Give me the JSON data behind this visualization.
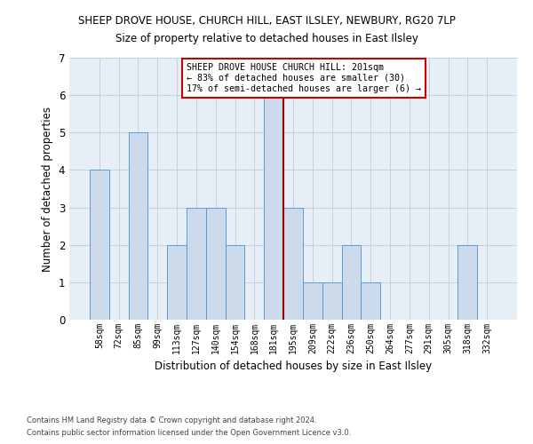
{
  "title1": "SHEEP DROVE HOUSE, CHURCH HILL, EAST ILSLEY, NEWBURY, RG20 7LP",
  "title2": "Size of property relative to detached houses in East Ilsley",
  "xlabel": "Distribution of detached houses by size in East Ilsley",
  "ylabel": "Number of detached properties",
  "footer1": "Contains HM Land Registry data © Crown copyright and database right 2024.",
  "footer2": "Contains public sector information licensed under the Open Government Licence v3.0.",
  "annotation_line1": "SHEEP DROVE HOUSE CHURCH HILL: 201sqm",
  "annotation_line2": "← 83% of detached houses are smaller (30)",
  "annotation_line3": "17% of semi-detached houses are larger (6) →",
  "bar_color": "#ccdaeb",
  "bar_edge_color": "#5b9bd5",
  "redline_color": "#990000",
  "annotation_box_facecolor": "#ffffff",
  "annotation_box_edgecolor": "#cc0000",
  "plot_bg_color": "#e8eef6",
  "grid_color": "#c5cfe0",
  "bins": [
    "58sqm",
    "72sqm",
    "85sqm",
    "99sqm",
    "113sqm",
    "127sqm",
    "140sqm",
    "154sqm",
    "168sqm",
    "181sqm",
    "195sqm",
    "209sqm",
    "222sqm",
    "236sqm",
    "250sqm",
    "264sqm",
    "277sqm",
    "291sqm",
    "305sqm",
    "318sqm",
    "332sqm"
  ],
  "values": [
    4,
    0,
    5,
    0,
    2,
    3,
    3,
    2,
    0,
    6,
    3,
    1,
    1,
    2,
    1,
    0,
    0,
    0,
    0,
    2,
    0
  ],
  "redline_x": 9.5,
  "ylim": [
    0,
    7
  ],
  "yticks": [
    0,
    1,
    2,
    3,
    4,
    5,
    6,
    7
  ],
  "figsize": [
    6.0,
    5.0
  ],
  "dpi": 100
}
